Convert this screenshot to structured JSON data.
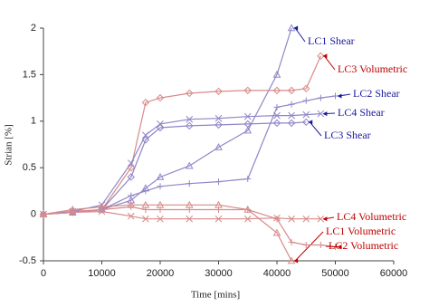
{
  "chart_data": {
    "type": "line",
    "xlabel": "Time [mins]",
    "ylabel": "Strian [%]",
    "x": [
      0,
      5000,
      10000,
      15000,
      17500,
      20000,
      25000,
      30000,
      35000,
      40000,
      42500,
      45000,
      47500,
      50000
    ],
    "xlim": [
      0,
      60000
    ],
    "xticks": [
      0,
      10000,
      20000,
      30000,
      40000,
      50000,
      60000
    ],
    "ylim": [
      -0.5,
      2
    ],
    "yticks": [
      -0.5,
      0,
      0.5,
      1,
      1.5,
      2
    ],
    "grid": false,
    "series": [
      {
        "name": "LC1 Shear",
        "color": "#8f86c8",
        "marker": "triangle",
        "label_color": "#1a1aa0",
        "values": [
          0,
          0.02,
          0.05,
          0.15,
          0.28,
          0.4,
          0.52,
          0.72,
          0.9,
          1.5,
          2.0,
          null,
          null,
          null
        ]
      },
      {
        "name": "LC3 Volumetric",
        "color": "#d88a8a",
        "marker": "diamond",
        "label_color": "#c00000",
        "values": [
          0,
          0.03,
          0.05,
          0.5,
          1.2,
          1.25,
          1.3,
          1.32,
          1.33,
          1.33,
          1.33,
          1.35,
          1.7,
          null
        ]
      },
      {
        "name": "LC2 Shear",
        "color": "#8f86c8",
        "marker": "plus",
        "label_color": "#1a1aa0",
        "values": [
          0,
          0.02,
          0.05,
          0.2,
          0.25,
          0.3,
          0.33,
          0.35,
          0.38,
          1.15,
          1.18,
          1.22,
          1.25,
          1.27
        ]
      },
      {
        "name": "LC4 Shear",
        "color": "#8f86c8",
        "marker": "x",
        "label_color": "#1a1aa0",
        "values": [
          0,
          0.03,
          0.1,
          0.55,
          0.85,
          0.97,
          1.02,
          1.03,
          1.05,
          1.06,
          1.06,
          1.07,
          1.08,
          null
        ]
      },
      {
        "name": "LC3 Shear",
        "color": "#8f86c8",
        "marker": "diamond",
        "label_color": "#1a1aa0",
        "values": [
          0,
          0.02,
          0.05,
          0.4,
          0.8,
          0.93,
          0.95,
          0.96,
          0.97,
          0.98,
          0.98,
          0.99,
          null,
          null
        ]
      },
      {
        "name": "LC4 Volumetric",
        "color": "#d88a8a",
        "marker": "x",
        "label_color": "#c00000",
        "values": [
          0,
          0.02,
          0.03,
          -0.02,
          -0.05,
          -0.05,
          -0.05,
          -0.05,
          -0.05,
          -0.04,
          -0.05,
          -0.05,
          -0.05,
          null
        ]
      },
      {
        "name": "LC1 Volumetric",
        "color": "#d88a8a",
        "marker": "triangle",
        "label_color": "#c00000",
        "values": [
          0,
          0.05,
          0.08,
          0.1,
          0.1,
          0.1,
          0.1,
          0.1,
          0.05,
          -0.2,
          -0.5,
          null,
          null,
          null
        ]
      },
      {
        "name": "LC2 Volumetric",
        "color": "#d88a8a",
        "marker": "plus",
        "label_color": "#c00000",
        "values": [
          0,
          0.02,
          0.05,
          0.08,
          0.05,
          0.05,
          0.05,
          0.05,
          0.05,
          -0.05,
          -0.3,
          -0.33,
          -0.33,
          -0.35
        ]
      }
    ]
  }
}
